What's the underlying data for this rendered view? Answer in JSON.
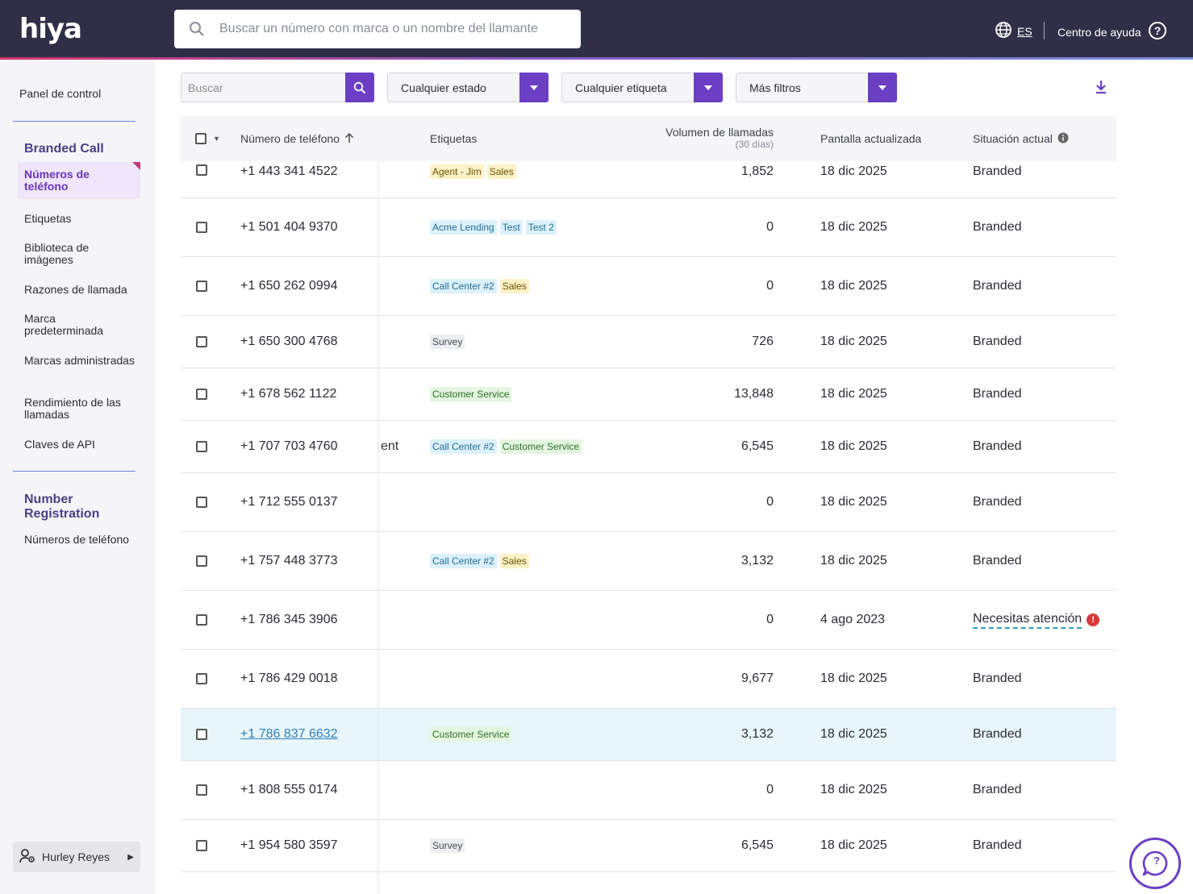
{
  "header": {
    "logo_text": "hiya",
    "search_placeholder": "Buscar un número con marca o un nombre del llamante",
    "language": "ES",
    "help_label": "Centro de ayuda"
  },
  "sidebar": {
    "dashboard": "Panel de control",
    "branded_call": {
      "title": "Branded Call",
      "items": [
        "Números de teléfono",
        "Etiquetas",
        "Biblioteca de imágenes",
        "Razones de llamada",
        "Marca predeterminada",
        "Marcas administradas",
        "Rendimiento de las llamadas",
        "Claves de API"
      ]
    },
    "number_registration": {
      "title": "Number Registration",
      "items": [
        "Números de teléfono"
      ]
    },
    "user_name": "Hurley Reyes"
  },
  "filters": {
    "search_placeholder": "Buscar",
    "status": "Cualquier estado",
    "tag": "Cualquier etiqueta",
    "more": "Más filtros"
  },
  "table": {
    "columns": {
      "phone": "Número de teléfono",
      "tags": "Etiquetas",
      "volume": "Volumen de llamadas",
      "volume_sub": "(30 días)",
      "updated": "Pantalla actualizada",
      "status": "Situación actual"
    },
    "partial_text": "ent",
    "rows": [
      {
        "phone": "+1 443 341 4522",
        "tags": [
          "Agent - Jim",
          "Sales"
        ],
        "volume": "1,852",
        "updated": "18 dic 2025",
        "status": "Branded"
      },
      {
        "phone": "+1 501 404 9370",
        "tags": [
          "Acme Lending",
          "Test",
          "Test 2"
        ],
        "volume": "0",
        "updated": "18 dic 2025",
        "status": "Branded"
      },
      {
        "phone": "+1 650 262 0994",
        "tags": [
          "Call Center #2",
          "Sales"
        ],
        "volume": "0",
        "updated": "18 dic 2025",
        "status": "Branded"
      },
      {
        "phone": "+1 650 300 4768",
        "tags": [
          "Survey"
        ],
        "volume": "726",
        "updated": "18 dic 2025",
        "status": "Branded"
      },
      {
        "phone": "+1 678 562 1122",
        "tags": [
          "Customer Service"
        ],
        "volume": "13,848",
        "updated": "18 dic 2025",
        "status": "Branded"
      },
      {
        "phone": "+1 707 703 4760",
        "tags": [
          "Call Center #2",
          "Customer Service"
        ],
        "volume": "6,545",
        "updated": "18 dic 2025",
        "status": "Branded"
      },
      {
        "phone": "+1 712 555 0137",
        "tags": [],
        "volume": "0",
        "updated": "18 dic 2025",
        "status": "Branded"
      },
      {
        "phone": "+1 757 448 3773",
        "tags": [
          "Call Center #2",
          "Sales"
        ],
        "volume": "3,132",
        "updated": "18 dic 2025",
        "status": "Branded"
      },
      {
        "phone": "+1 786 345 3906",
        "tags": [],
        "volume": "0",
        "updated": "4 ago 2023",
        "status": "Necesitas atención"
      },
      {
        "phone": "+1 786 429 0018",
        "tags": [],
        "volume": "9,677",
        "updated": "18 dic 2025",
        "status": "Branded"
      },
      {
        "phone": "+1 786 837 6632",
        "tags": [
          "Customer Service"
        ],
        "volume": "3,132",
        "updated": "18 dic 2025",
        "status": "Branded"
      },
      {
        "phone": "+1 808 555 0174",
        "tags": [],
        "volume": "0",
        "updated": "18 dic 2025",
        "status": "Branded"
      },
      {
        "phone": "+1 954 580 3597",
        "tags": [
          "Survey"
        ],
        "volume": "6,545",
        "updated": "18 dic 2025",
        "status": "Branded"
      }
    ]
  },
  "tag_colors": {
    "Agent - Jim": "yellow",
    "Sales": "yellow",
    "Acme Lending": "blue",
    "Test": "blue",
    "Test 2": "blue",
    "Call Center #2": "blue",
    "Survey": "gray",
    "Customer Service": "green"
  },
  "colors": {
    "topbar": "#2f3048",
    "accent_purple": "#6a3fc3",
    "tag_yellow_bg": "#fdf1c7",
    "tag_yellow_fg": "#6b5300",
    "tag_blue_bg": "#dcf1fb",
    "tag_blue_fg": "#1f6e97",
    "tag_green_bg": "#e3f6df",
    "tag_green_fg": "#2f6e2a",
    "tag_gray_bg": "#eceef1",
    "tag_gray_fg": "#444a55",
    "error_red": "#d93b3b"
  },
  "icons": [
    "search-icon",
    "globe-icon",
    "help-circle-icon",
    "caret-down-icon",
    "sort-up-icon",
    "info-icon",
    "download-icon",
    "user-gear-icon",
    "chat-help-icon",
    "error-icon"
  ]
}
